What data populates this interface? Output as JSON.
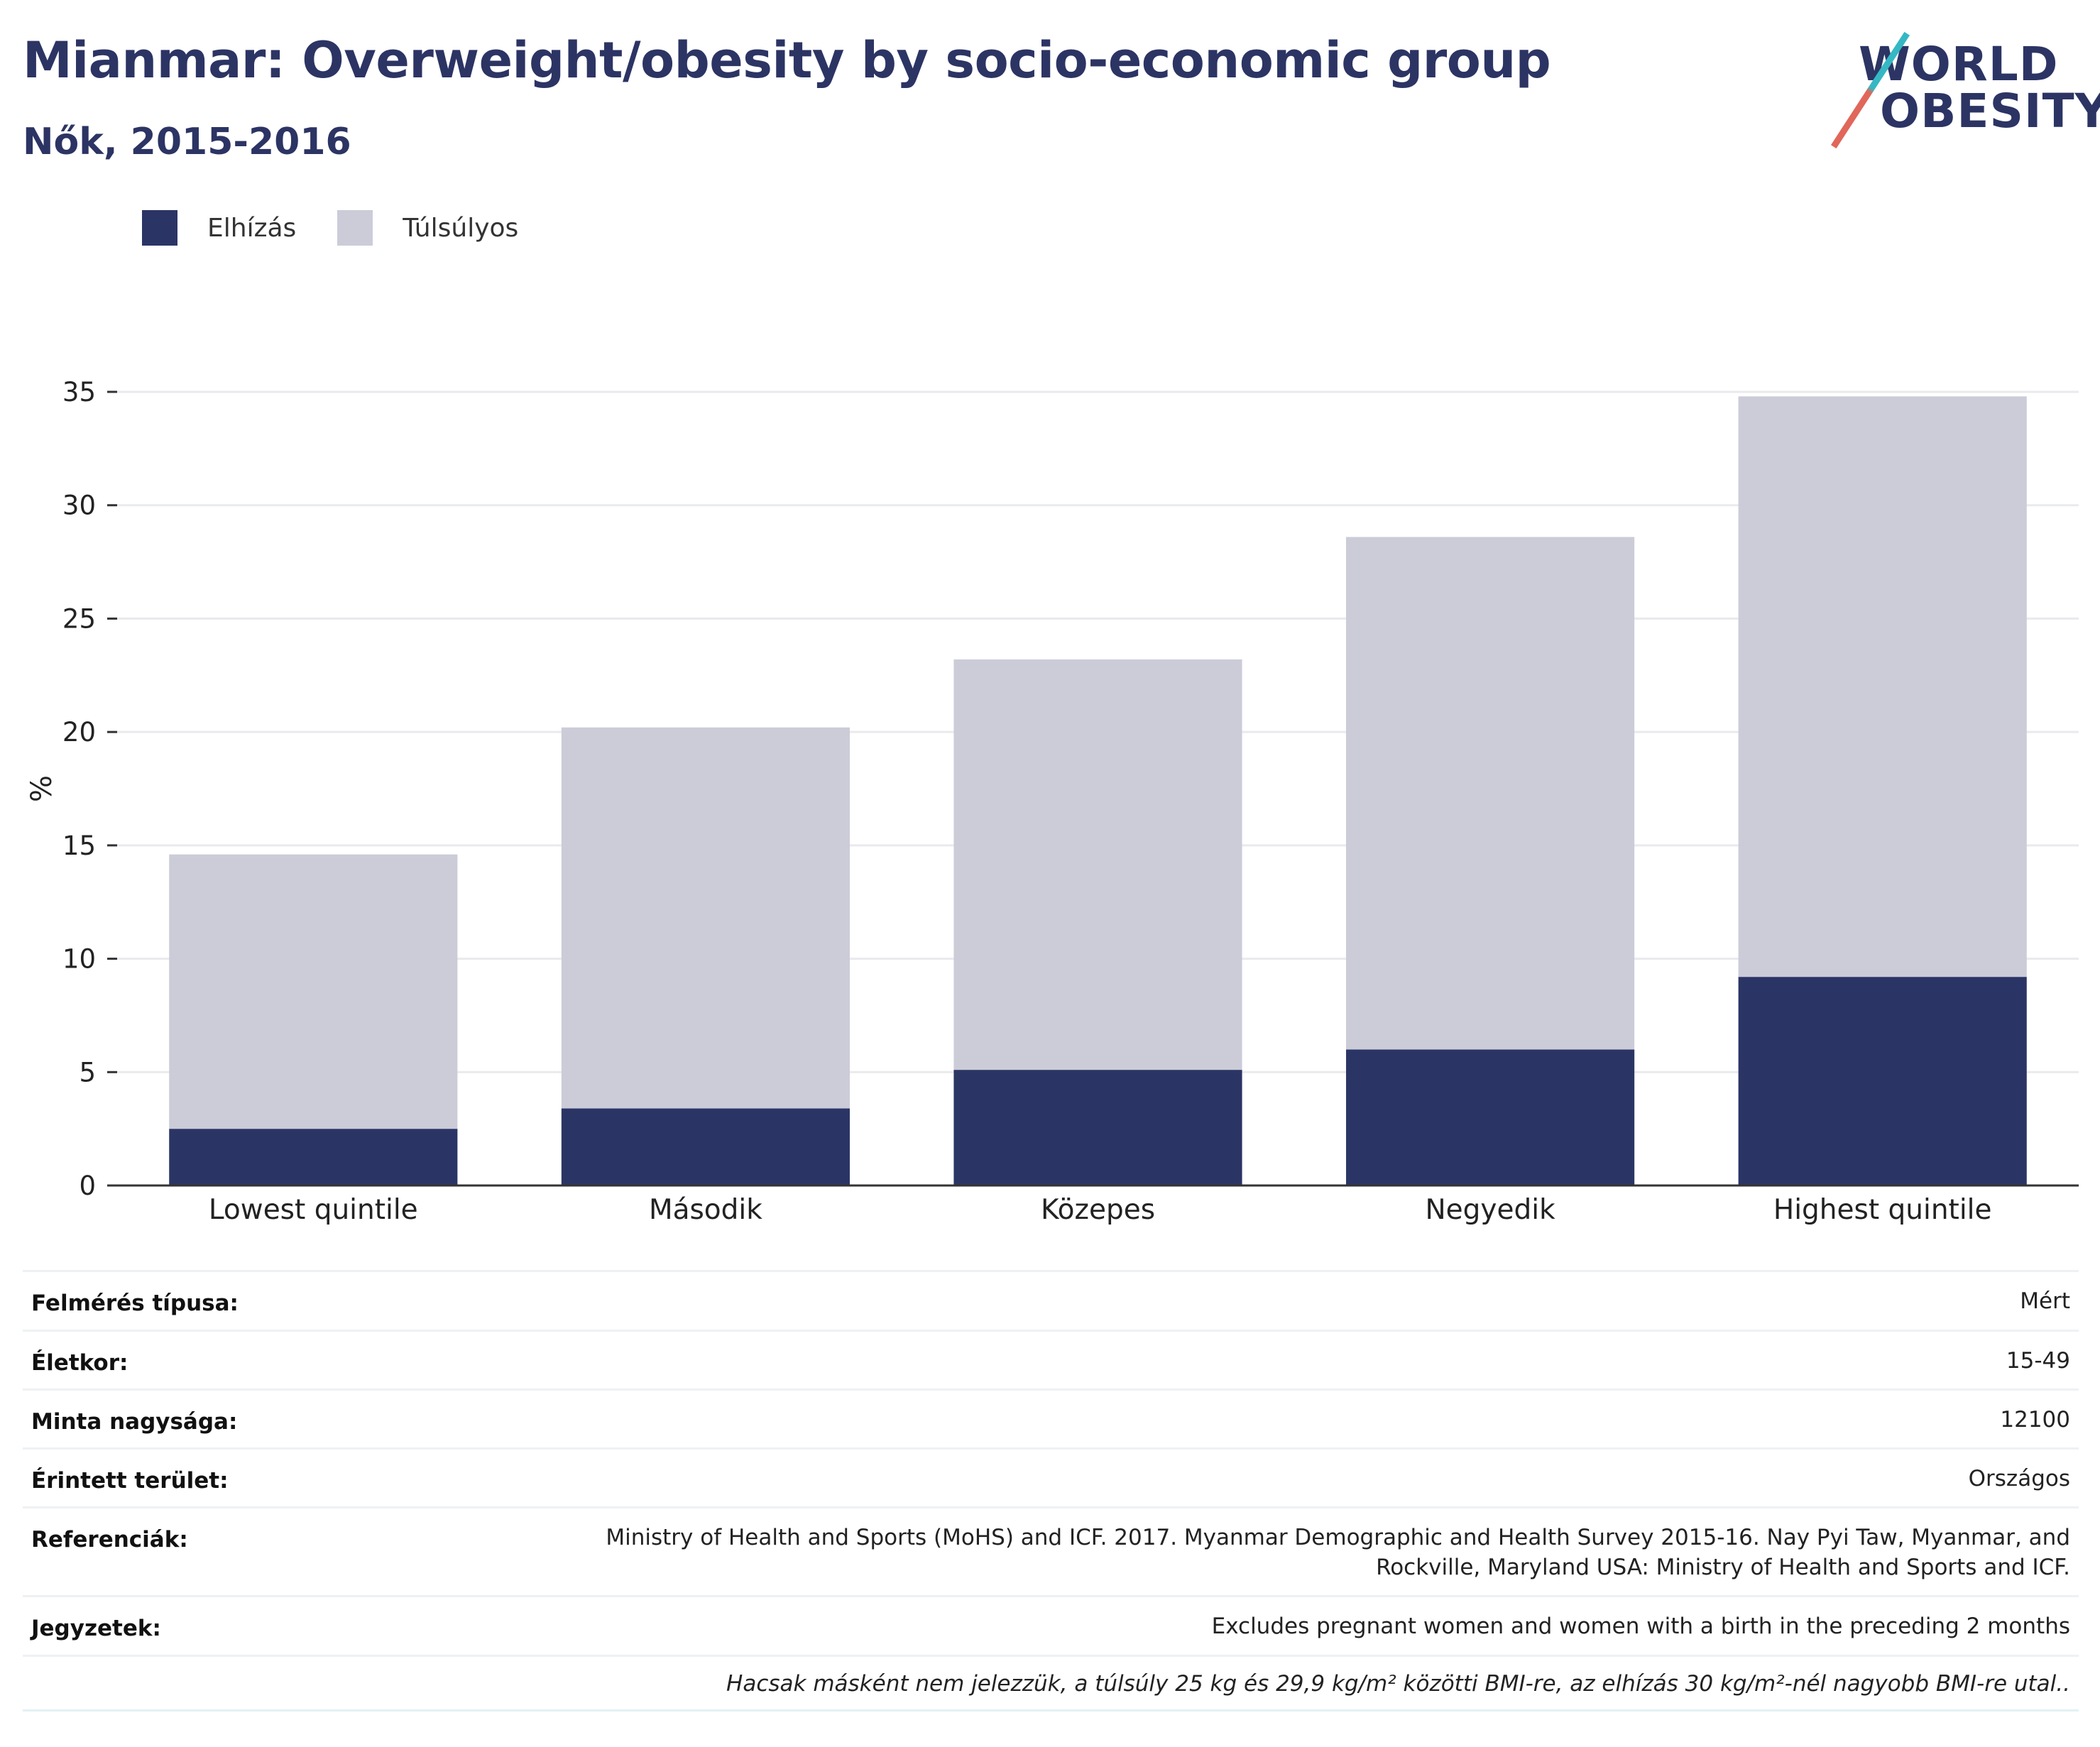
{
  "header": {
    "title": "Mianmar: Overweight/obesity by socio-economic group",
    "subtitle": "Nők, 2015-2016"
  },
  "logo": {
    "line1": "WORLD",
    "line2": "OBESITY"
  },
  "colors": {
    "obesity": "#2b3565",
    "overweight": "#cbccd8",
    "title": "#2c3464",
    "grid": "#e9eaee",
    "axis": "#333333"
  },
  "chart_data": {
    "type": "bar",
    "stacked": true,
    "categories": [
      "Lowest quintile",
      "Második",
      "Közepes",
      "Negyedik",
      "Highest quintile"
    ],
    "series": [
      {
        "name": "Elhízás",
        "color": "#2b3565",
        "values": [
          2.5,
          3.4,
          5.1,
          6.0,
          9.2
        ]
      },
      {
        "name": "Túlsúlyos",
        "color": "#cbccd8",
        "values": [
          12.1,
          16.8,
          18.1,
          22.6,
          25.6
        ]
      }
    ],
    "totals": [
      14.6,
      20.2,
      23.2,
      28.6,
      34.8
    ],
    "ylabel": "%",
    "xlabel": "",
    "ylim": [
      0,
      35
    ],
    "yticks": [
      0,
      5,
      10,
      15,
      20,
      25,
      30,
      35
    ],
    "grid": true,
    "legend_position": "top-left"
  },
  "info": {
    "rows": [
      {
        "key": "Felmérés típusa:",
        "value": "Mért"
      },
      {
        "key": "Életkor:",
        "value": "15-49"
      },
      {
        "key": "Minta nagysága:",
        "value": "12100"
      },
      {
        "key": "Érintett terület:",
        "value": "Országos"
      },
      {
        "key": "Referenciák:",
        "value": "Ministry of Health and Sports (MoHS) and ICF. 2017. Myanmar Demographic and Health Survey 2015-16. Nay Pyi Taw, Myanmar, and Rockville, Maryland USA: Ministry of Health and Sports and ICF.",
        "value_line1": "Ministry of Health and Sports (MoHS) and ICF. 2017. Myanmar Demographic and Health Survey 2015-16. Nay Pyi Taw, Myanmar, and",
        "value_line2": "Rockville, Maryland USA: Ministry of Health and Sports and ICF."
      },
      {
        "key": "Jegyzetek:",
        "value": "Excludes pregnant women and women with a birth in the preceding 2 months"
      }
    ],
    "footnote": "Hacsak másként nem jelezzük, a túlsúly 25 kg és 29,9 kg/m² közötti BMI-re, az elhízás 30 kg/m²-nél nagyobb BMI-re utal.."
  }
}
